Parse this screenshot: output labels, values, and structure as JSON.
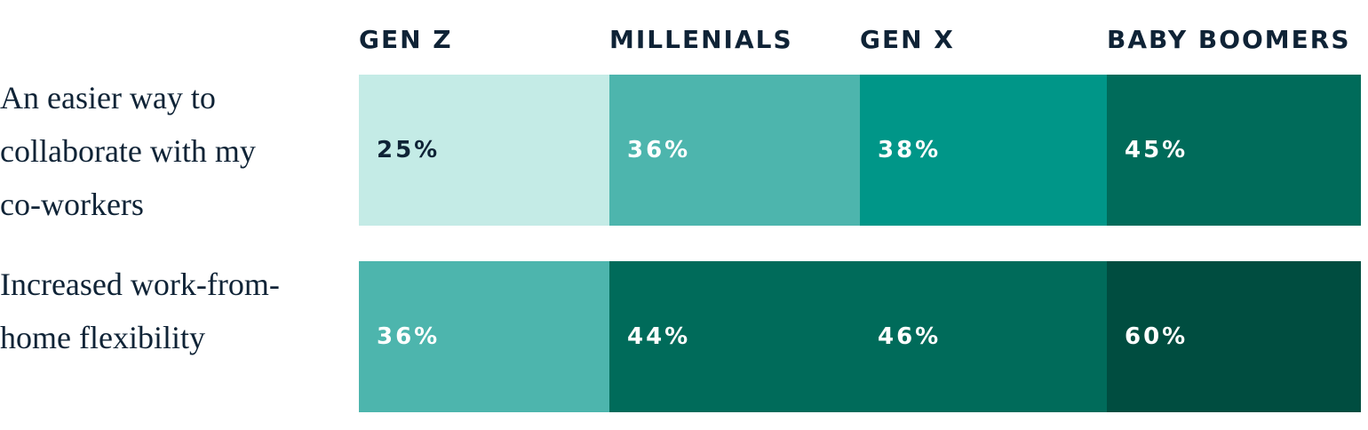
{
  "chart_data": {
    "type": "heatmap",
    "categories": [
      "GEN Z",
      "MILLENIALS",
      "GEN X",
      "BABY BOOMERS"
    ],
    "rows": [
      "An easier way to collaborate with my co-workers",
      "Increased work-from-home flexibility"
    ],
    "values": [
      [
        25,
        36,
        38,
        45
      ],
      [
        36,
        44,
        46,
        60
      ]
    ],
    "value_labels": [
      [
        "25%",
        "36%",
        "38%",
        "45%"
      ],
      [
        "36%",
        "44%",
        "46%",
        "60%"
      ]
    ],
    "cell_colors": [
      [
        "#c4ebe6",
        "#4db5ad",
        "#009688",
        "#006b5a"
      ],
      [
        "#4db5ad",
        "#006b5a",
        "#006b5a",
        "#004d40"
      ]
    ]
  }
}
